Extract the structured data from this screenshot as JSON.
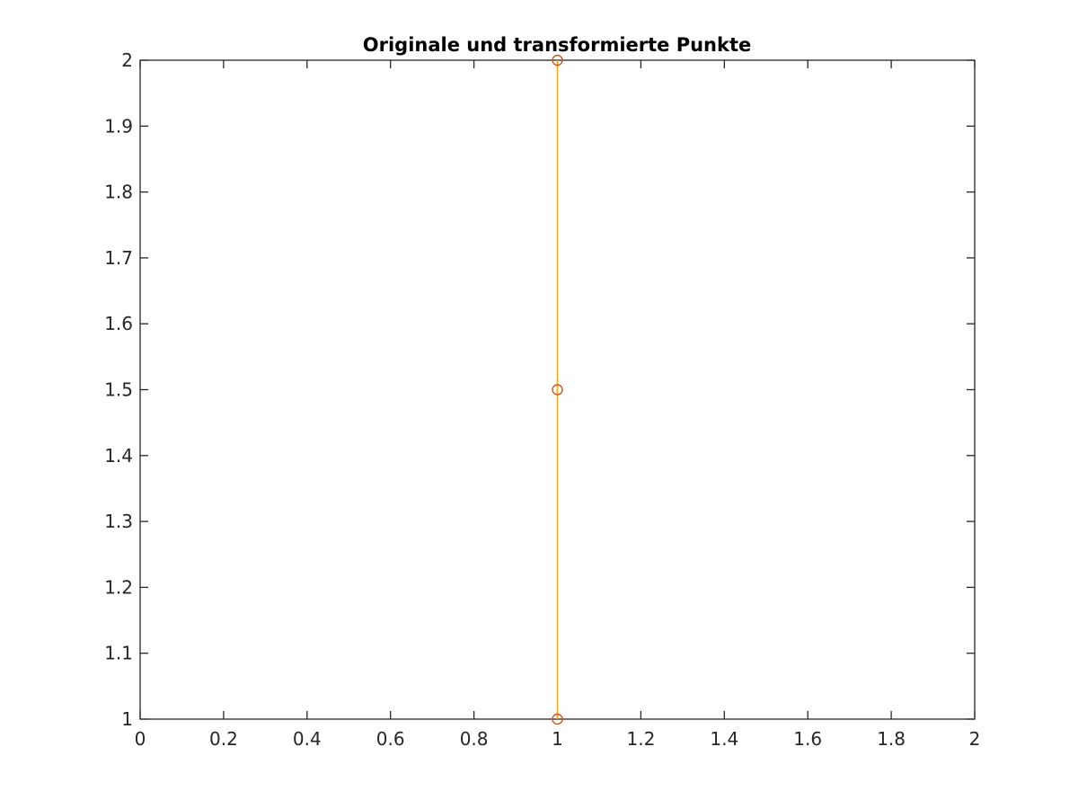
{
  "chart_data": {
    "type": "line",
    "title": "Originale und transformierte Punkte",
    "xlabel": "",
    "ylabel": "",
    "xlim": [
      0,
      2
    ],
    "ylim": [
      1,
      2
    ],
    "x_ticks": [
      "0",
      "0.2",
      "0.4",
      "0.6",
      "0.8",
      "1",
      "1.2",
      "1.4",
      "1.6",
      "1.8",
      "2"
    ],
    "y_ticks": [
      "1",
      "1.1",
      "1.2",
      "1.3",
      "1.4",
      "1.5",
      "1.6",
      "1.7",
      "1.8",
      "1.9",
      "2"
    ],
    "grid": false,
    "legend": "none",
    "series": [
      {
        "style": "line",
        "color": "#EDB120",
        "points": [
          {
            "x": 1,
            "y": 1
          },
          {
            "x": 1,
            "y": 2
          }
        ]
      },
      {
        "style": "circle-markers",
        "color": "#D95319",
        "points": [
          {
            "x": 1,
            "y": 1
          },
          {
            "x": 1,
            "y": 1.5
          },
          {
            "x": 1,
            "y": 2
          }
        ]
      }
    ]
  }
}
